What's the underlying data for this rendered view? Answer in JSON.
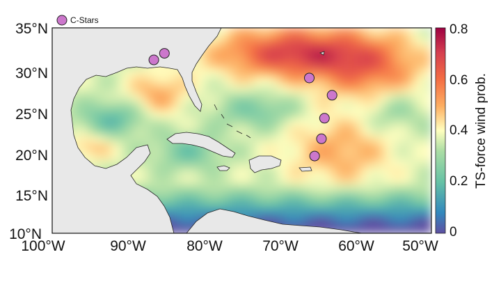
{
  "map": {
    "x_ticks": [
      "100°W",
      "90°W",
      "80°W",
      "70°W",
      "60°W",
      "50°W"
    ],
    "y_ticks": [
      "35°N",
      "30°N",
      "25°N",
      "20°N",
      "15°N",
      "10°N"
    ],
    "lon_range": [
      -100,
      -50
    ],
    "lat_range": [
      10,
      35
    ],
    "land_color": "#e8e8e8",
    "station_color": "#cc77cc"
  },
  "legend": {
    "label": "C-Stars"
  },
  "colorbar": {
    "label": "TS-force wind prob.",
    "ticks": [
      "0",
      "0.2",
      "0.4",
      "0.6",
      "0.8"
    ],
    "range": [
      0,
      0.8
    ],
    "colormap": "Spectral (reversed)"
  },
  "chart_data": {
    "type": "heatmap",
    "title": "",
    "xlabel": "",
    "ylabel": "",
    "xlim": [
      -100,
      -50
    ],
    "ylim": [
      10,
      35
    ],
    "colorbar_label": "TS-force wind prob.",
    "series": [
      {
        "name": "C-Stars",
        "points": [
          {
            "lon": -86.6,
            "lat": 31.1
          },
          {
            "lon": -85.2,
            "lat": 31.9
          },
          {
            "lon": -66.1,
            "lat": 28.9
          },
          {
            "lon": -63.1,
            "lat": 26.8
          },
          {
            "lon": -64.1,
            "lat": 24.0
          },
          {
            "lon": -64.5,
            "lat": 21.5
          },
          {
            "lon": -65.4,
            "lat": 19.4
          }
        ]
      }
    ]
  }
}
